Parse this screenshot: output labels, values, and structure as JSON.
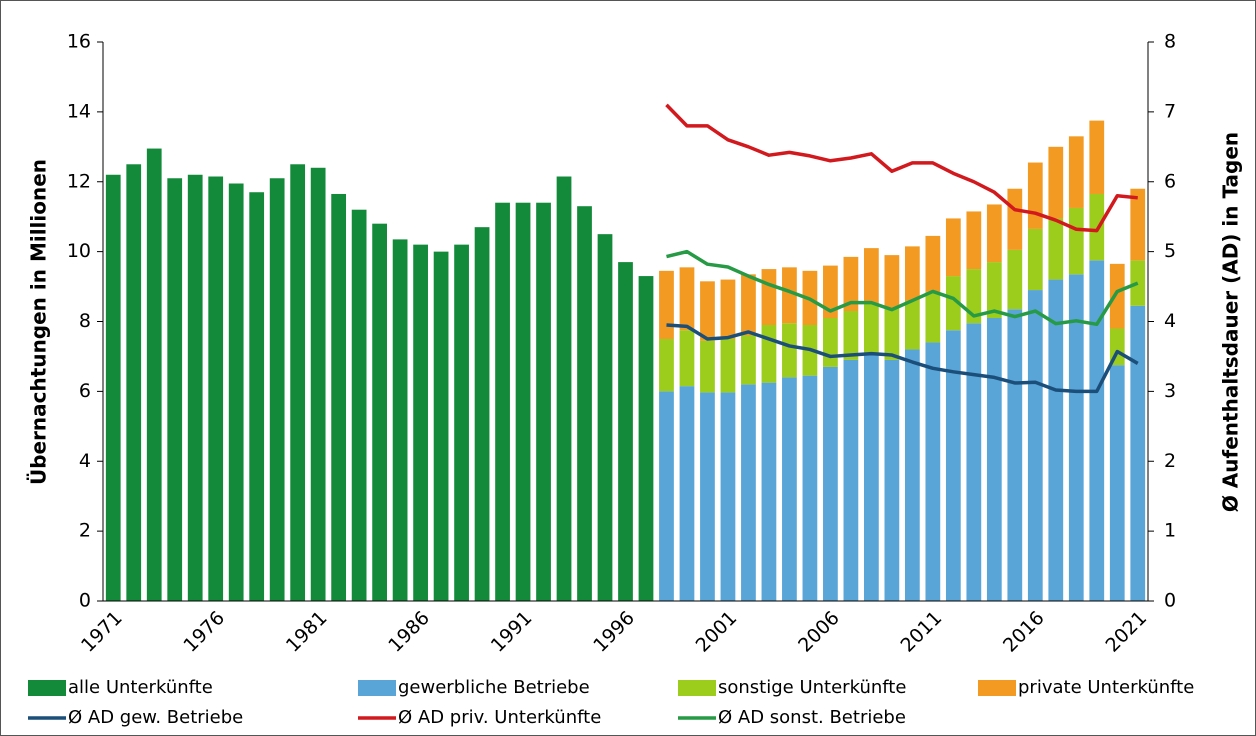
{
  "chart_data": {
    "type": "bar",
    "y_label": "Übernachtungen in Millionen",
    "y2_label": "Ø Aufenthaltsdauer (AD) in Tagen",
    "categories": [
      "1971",
      null,
      null,
      null,
      null,
      "1976",
      null,
      null,
      null,
      null,
      "1981",
      null,
      null,
      null,
      null,
      "1986",
      null,
      null,
      null,
      null,
      "1991",
      null,
      null,
      null,
      null,
      "1996",
      null,
      null,
      null,
      null,
      "2001",
      null,
      null,
      null,
      null,
      "2006",
      null,
      null,
      null,
      null,
      "2011",
      null,
      null,
      null,
      null,
      "2016",
      null,
      null,
      null,
      null,
      "2021"
    ],
    "ylim": [
      0,
      16
    ],
    "yticks": [
      0,
      2,
      4,
      6,
      8,
      10,
      12,
      14,
      16
    ],
    "y2lim": [
      0,
      8
    ],
    "y2ticks": [
      0,
      1,
      2,
      3,
      4,
      5,
      6,
      7,
      8
    ],
    "series": [
      {
        "name": "alle Unterkünfte",
        "type": "bar",
        "color": "#138a3a",
        "values": [
          12.2,
          12.5,
          12.95,
          12.1,
          12.2,
          12.15,
          11.95,
          11.7,
          12.1,
          12.5,
          12.4,
          11.65,
          11.2,
          10.8,
          10.35,
          10.2,
          10.0,
          10.2,
          10.7,
          11.4,
          11.4,
          11.4,
          12.15,
          11.3,
          10.5,
          9.7,
          9.3,
          null,
          null,
          null,
          null,
          null,
          null,
          null,
          null,
          null,
          null,
          null,
          null,
          null,
          null,
          null,
          null,
          null,
          null,
          null,
          null,
          null,
          null,
          null,
          null
        ]
      },
      {
        "name": "gewerbliche Betriebe",
        "type": "bar",
        "color": "#59a5d8",
        "values": [
          null,
          null,
          null,
          null,
          null,
          null,
          null,
          null,
          null,
          null,
          null,
          null,
          null,
          null,
          null,
          null,
          null,
          null,
          null,
          null,
          null,
          null,
          null,
          null,
          null,
          null,
          null,
          6.0,
          6.15,
          5.97,
          5.97,
          6.2,
          6.25,
          6.4,
          6.45,
          6.7,
          6.9,
          7.05,
          6.9,
          7.2,
          7.4,
          7.75,
          7.95,
          8.1,
          8.35,
          8.9,
          9.2,
          9.35,
          9.75,
          6.75,
          8.45
        ]
      },
      {
        "name": "sonstige Unterkünfte",
        "type": "bar",
        "color": "#9ccc1c",
        "values": [
          null,
          null,
          null,
          null,
          null,
          null,
          null,
          null,
          null,
          null,
          null,
          null,
          null,
          null,
          null,
          null,
          null,
          null,
          null,
          null,
          null,
          null,
          null,
          null,
          null,
          null,
          null,
          1.5,
          1.6,
          1.48,
          1.53,
          1.4,
          1.65,
          1.55,
          1.45,
          1.4,
          1.4,
          1.45,
          1.5,
          1.4,
          1.45,
          1.55,
          1.55,
          1.6,
          1.7,
          1.75,
          1.75,
          1.9,
          1.9,
          1.05,
          1.3
        ]
      },
      {
        "name": "private Unterkünfte",
        "type": "bar",
        "color": "#f29a22",
        "values": [
          null,
          null,
          null,
          null,
          null,
          null,
          null,
          null,
          null,
          null,
          null,
          null,
          null,
          null,
          null,
          null,
          null,
          null,
          null,
          null,
          null,
          null,
          null,
          null,
          null,
          null,
          null,
          1.95,
          1.8,
          1.7,
          1.7,
          1.75,
          1.6,
          1.6,
          1.55,
          1.5,
          1.55,
          1.6,
          1.5,
          1.55,
          1.6,
          1.65,
          1.65,
          1.65,
          1.75,
          1.9,
          2.05,
          2.05,
          2.1,
          1.85,
          2.05
        ]
      },
      {
        "name": "Ø AD gew. Betriebe",
        "type": "line",
        "axis": "y2",
        "color": "#1b4f7a",
        "values": [
          null,
          null,
          null,
          null,
          null,
          null,
          null,
          null,
          null,
          null,
          null,
          null,
          null,
          null,
          null,
          null,
          null,
          null,
          null,
          null,
          null,
          null,
          null,
          null,
          null,
          null,
          null,
          3.95,
          3.93,
          3.75,
          3.77,
          3.85,
          3.75,
          3.65,
          3.6,
          3.5,
          3.52,
          3.54,
          3.52,
          3.42,
          3.33,
          3.28,
          3.24,
          3.2,
          3.12,
          3.13,
          3.02,
          3.0,
          3.0,
          3.57,
          3.4
        ]
      },
      {
        "name": "Ø AD priv. Unterkünfte",
        "type": "line",
        "axis": "y2",
        "color": "#d2191e",
        "values": [
          null,
          null,
          null,
          null,
          null,
          null,
          null,
          null,
          null,
          null,
          null,
          null,
          null,
          null,
          null,
          null,
          null,
          null,
          null,
          null,
          null,
          null,
          null,
          null,
          null,
          null,
          null,
          7.1,
          6.8,
          6.8,
          6.6,
          6.5,
          6.38,
          6.42,
          6.37,
          6.3,
          6.34,
          6.4,
          6.15,
          6.27,
          6.27,
          6.12,
          6.0,
          5.85,
          5.6,
          5.55,
          5.45,
          5.32,
          5.3,
          5.8,
          5.77
        ]
      },
      {
        "name": "Ø AD sonst. Betriebe",
        "type": "line",
        "axis": "y2",
        "color": "#279a45",
        "values": [
          null,
          null,
          null,
          null,
          null,
          null,
          null,
          null,
          null,
          null,
          null,
          null,
          null,
          null,
          null,
          null,
          null,
          null,
          null,
          null,
          null,
          null,
          null,
          null,
          null,
          null,
          null,
          4.93,
          5.0,
          4.82,
          4.78,
          4.65,
          4.53,
          4.43,
          4.32,
          4.15,
          4.27,
          4.27,
          4.17,
          4.3,
          4.43,
          4.33,
          4.08,
          4.15,
          4.07,
          4.15,
          3.97,
          4.01,
          3.96,
          4.43,
          4.55
        ]
      }
    ]
  }
}
